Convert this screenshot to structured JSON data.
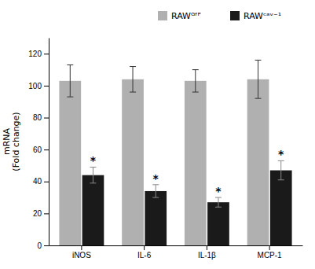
{
  "chart_data": {
    "type": "bar",
    "ylabel": "mRNA\n(Fold change)",
    "categories": [
      "iNOS",
      "IL-6",
      "IL-1β",
      "MCP-1"
    ],
    "series": [
      {
        "name": "RAWᴳᶠᴾ",
        "color": "#b0b0b0",
        "values": [
          103,
          104,
          103,
          104
        ],
        "errors": [
          10,
          8,
          7,
          12
        ]
      },
      {
        "name": "RAWᶜᵃᵛ⁻¹",
        "color": "#1a1a1a",
        "values": [
          44,
          34,
          27,
          47
        ],
        "errors": [
          5,
          4,
          3,
          6
        ]
      }
    ],
    "annotations": [
      "*",
      "*",
      "*",
      "*"
    ],
    "ylim": [
      0,
      130
    ],
    "yticks": [
      0,
      20,
      40,
      60,
      80,
      100,
      120
    ],
    "legend": "upper right"
  }
}
